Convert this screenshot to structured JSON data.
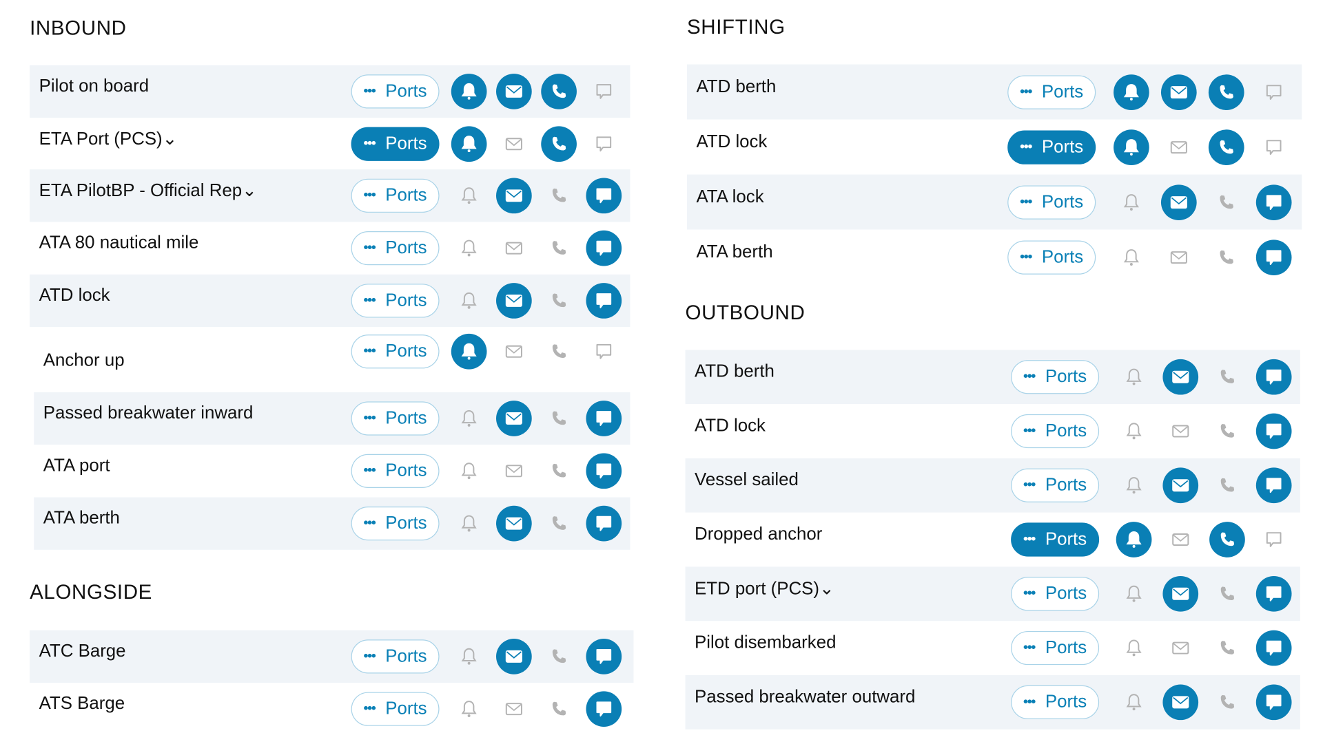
{
  "colors": {
    "accent": "#0a7fb5",
    "inactive": "#b3b3b3",
    "stripe": "#f0f4f8"
  },
  "ports_label": "Ports",
  "sections": [
    {
      "title": "INBOUND",
      "rows": [
        {
          "label": "Pilot on board",
          "ports_active": false,
          "bell": true,
          "mail": true,
          "phone": true,
          "chat": false
        },
        {
          "label": "ETA Port (PCS)⌄",
          "ports_active": true,
          "bell": true,
          "mail": false,
          "phone": true,
          "chat": false
        },
        {
          "label": "ETA PilotBP - Official Rep⌄",
          "ports_active": false,
          "bell": false,
          "mail": true,
          "phone": false,
          "chat": true
        },
        {
          "label": "ATA 80 nautical mile",
          "ports_active": false,
          "bell": false,
          "mail": false,
          "phone": false,
          "chat": true
        },
        {
          "label": "ATD lock",
          "ports_active": false,
          "bell": false,
          "mail": true,
          "phone": false,
          "chat": true
        },
        {
          "label": "Anchor up",
          "ports_active": false,
          "bell": true,
          "mail": false,
          "phone": false,
          "chat": false
        },
        {
          "label": "Passed breakwater inward",
          "ports_active": false,
          "bell": false,
          "mail": true,
          "phone": false,
          "chat": true
        },
        {
          "label": "ATA port",
          "ports_active": false,
          "bell": false,
          "mail": false,
          "phone": false,
          "chat": true
        },
        {
          "label": "ATA berth",
          "ports_active": false,
          "bell": false,
          "mail": true,
          "phone": false,
          "chat": true
        }
      ]
    },
    {
      "title": "ALONGSIDE",
      "rows": [
        {
          "label": "ATC Barge",
          "ports_active": false,
          "bell": false,
          "mail": true,
          "phone": false,
          "chat": true
        },
        {
          "label": "ATS Barge",
          "ports_active": false,
          "bell": false,
          "mail": false,
          "phone": false,
          "chat": true
        }
      ]
    },
    {
      "title": "SHIFTING",
      "rows": [
        {
          "label": "ATD berth",
          "ports_active": false,
          "bell": true,
          "mail": true,
          "phone": true,
          "chat": false
        },
        {
          "label": "ATD lock",
          "ports_active": true,
          "bell": true,
          "mail": false,
          "phone": true,
          "chat": false
        },
        {
          "label": "ATA lock",
          "ports_active": false,
          "bell": false,
          "mail": true,
          "phone": false,
          "chat": true
        },
        {
          "label": "ATA berth",
          "ports_active": false,
          "bell": false,
          "mail": false,
          "phone": false,
          "chat": true
        }
      ]
    },
    {
      "title": "OUTBOUND",
      "rows": [
        {
          "label": "ATD berth",
          "ports_active": false,
          "bell": false,
          "mail": true,
          "phone": false,
          "chat": true
        },
        {
          "label": "ATD lock",
          "ports_active": false,
          "bell": false,
          "mail": false,
          "phone": false,
          "chat": true
        },
        {
          "label": "Vessel sailed",
          "ports_active": false,
          "bell": false,
          "mail": true,
          "phone": false,
          "chat": true
        },
        {
          "label": "Dropped anchor",
          "ports_active": true,
          "bell": true,
          "mail": false,
          "phone": true,
          "chat": false
        },
        {
          "label": "ETD port (PCS)⌄",
          "ports_active": false,
          "bell": false,
          "mail": true,
          "phone": false,
          "chat": true
        },
        {
          "label": "Pilot disembarked",
          "ports_active": false,
          "bell": false,
          "mail": false,
          "phone": false,
          "chat": true
        },
        {
          "label": "Passed breakwater outward",
          "ports_active": false,
          "bell": false,
          "mail": true,
          "phone": false,
          "chat": true
        }
      ]
    }
  ]
}
